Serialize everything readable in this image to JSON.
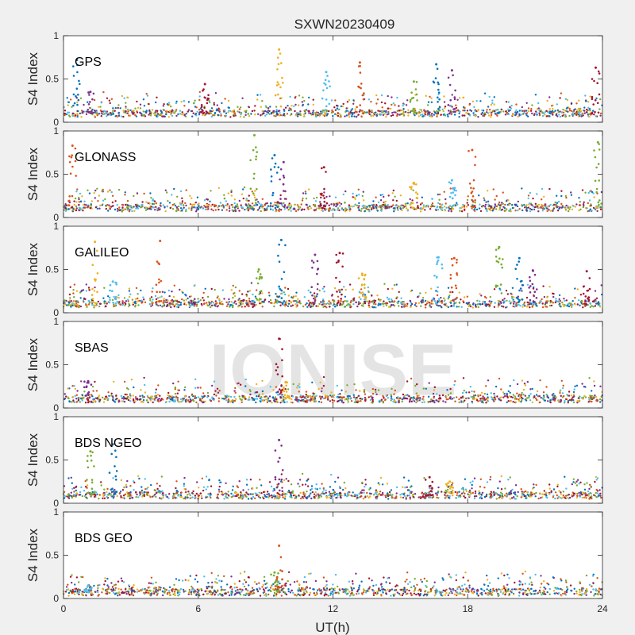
{
  "chart_data": {
    "type": "scatter",
    "title": "SXWN20230409",
    "xlabel": "UT(h)",
    "ylabel": "S4 Index",
    "xlim": [
      0,
      24
    ],
    "ylim": [
      0,
      1
    ],
    "xticks": [
      0,
      6,
      12,
      18,
      24
    ],
    "yticks": [
      0,
      0.5,
      1
    ],
    "grid": false,
    "watermark": "IONISE",
    "series_colors": [
      "#0072bd",
      "#d95319",
      "#edb120",
      "#7e2f8e",
      "#77ac30",
      "#4dbeee",
      "#a2142f"
    ],
    "panels": [
      {
        "label": "GPS",
        "baseline": 0.1,
        "spikes": [
          {
            "x": 0.6,
            "y": 0.72
          },
          {
            "x": 1.2,
            "y": 0.35
          },
          {
            "x": 6.3,
            "y": 0.44
          },
          {
            "x": 9.6,
            "y": 0.84
          },
          {
            "x": 11.7,
            "y": 0.58
          },
          {
            "x": 13.2,
            "y": 0.69
          },
          {
            "x": 15.6,
            "y": 0.47
          },
          {
            "x": 16.6,
            "y": 0.67
          },
          {
            "x": 17.3,
            "y": 0.6
          },
          {
            "x": 23.7,
            "y": 0.63
          }
        ]
      },
      {
        "label": "GLONASS",
        "baseline": 0.11,
        "spikes": [
          {
            "x": 0.4,
            "y": 0.83
          },
          {
            "x": 8.5,
            "y": 0.95
          },
          {
            "x": 9.4,
            "y": 0.72
          },
          {
            "x": 9.8,
            "y": 0.64
          },
          {
            "x": 11.6,
            "y": 0.58
          },
          {
            "x": 15.6,
            "y": 0.4
          },
          {
            "x": 17.3,
            "y": 0.43
          },
          {
            "x": 18.2,
            "y": 0.78
          },
          {
            "x": 23.8,
            "y": 0.87
          }
        ]
      },
      {
        "label": "GALILEO",
        "baseline": 0.1,
        "spikes": [
          {
            "x": 1.4,
            "y": 0.82
          },
          {
            "x": 2.2,
            "y": 0.36
          },
          {
            "x": 4.3,
            "y": 0.83
          },
          {
            "x": 8.7,
            "y": 0.5
          },
          {
            "x": 9.7,
            "y": 0.84
          },
          {
            "x": 11.2,
            "y": 0.67
          },
          {
            "x": 12.3,
            "y": 0.69
          },
          {
            "x": 13.3,
            "y": 0.45
          },
          {
            "x": 16.7,
            "y": 0.64
          },
          {
            "x": 17.4,
            "y": 0.63
          },
          {
            "x": 19.4,
            "y": 0.76
          },
          {
            "x": 20.3,
            "y": 0.63
          },
          {
            "x": 20.9,
            "y": 0.49
          },
          {
            "x": 23.3,
            "y": 0.48
          }
        ]
      },
      {
        "label": "SBAS",
        "baseline": 0.1,
        "spikes": [
          {
            "x": 1.1,
            "y": 0.31
          },
          {
            "x": 9.6,
            "y": 0.8
          },
          {
            "x": 9.9,
            "y": 0.3
          }
        ]
      },
      {
        "label": "BDS NGEO",
        "baseline": 0.09,
        "spikes": [
          {
            "x": 1.2,
            "y": 0.6
          },
          {
            "x": 2.2,
            "y": 0.68
          },
          {
            "x": 9.6,
            "y": 0.73
          },
          {
            "x": 16.3,
            "y": 0.3
          },
          {
            "x": 17.2,
            "y": 0.25
          }
        ]
      },
      {
        "label": "BDS GEO",
        "baseline": 0.07,
        "spikes": [
          {
            "x": 1.1,
            "y": 0.15
          },
          {
            "x": 9.6,
            "y": 0.61
          },
          {
            "x": 9.4,
            "y": 0.3
          }
        ]
      }
    ]
  }
}
